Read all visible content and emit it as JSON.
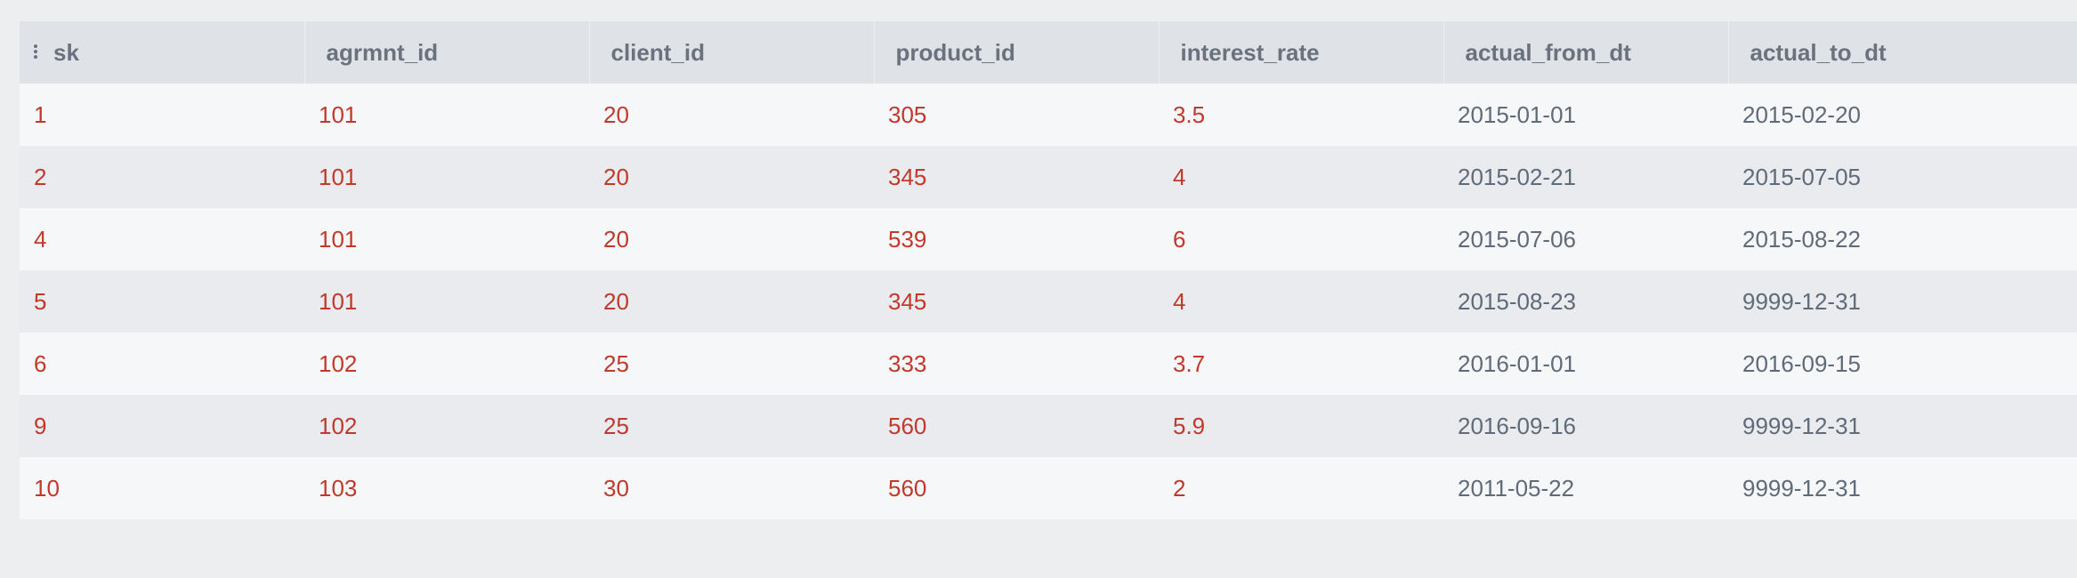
{
  "table": {
    "columns": [
      "sk",
      "agrmnt_id",
      "client_id",
      "product_id",
      "interest_rate",
      "actual_from_dt",
      "actual_to_dt"
    ],
    "rows": [
      [
        "1",
        "101",
        "20",
        "305",
        "3.5",
        "2015-01-01",
        "2015-02-20"
      ],
      [
        "2",
        "101",
        "20",
        "345",
        "4",
        "2015-02-21",
        "2015-07-05"
      ],
      [
        "4",
        "101",
        "20",
        "539",
        "6",
        "2015-07-06",
        "2015-08-22"
      ],
      [
        "5",
        "101",
        "20",
        "345",
        "4",
        "2015-08-23",
        "9999-12-31"
      ],
      [
        "6",
        "102",
        "25",
        "333",
        "3.7",
        "2016-01-01",
        "2016-09-15"
      ],
      [
        "9",
        "102",
        "25",
        "560",
        "5.9",
        "2016-09-16",
        "9999-12-31"
      ],
      [
        "10",
        "103",
        "30",
        "560",
        "2",
        "2011-05-22",
        "9999-12-31"
      ]
    ]
  },
  "icons": {
    "column_menu": "drag-handle-icon"
  },
  "colors": {
    "numeric_text": "#c0392b",
    "date_text": "#5f6b78",
    "header_bg": "#dfe2e6",
    "row_odd_bg": "#f6f7f9",
    "row_even_bg": "#e9ebee"
  }
}
